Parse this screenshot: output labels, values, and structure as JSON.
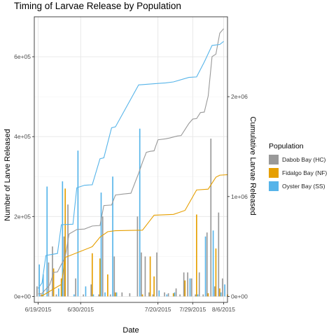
{
  "chart_data": {
    "type": "bar",
    "title": "Timing of Larvae Release by Population",
    "xlabel": "Date",
    "ylabel": "Number of Larve Released",
    "y2label": "Cumulative Larvae Released",
    "x_start": "2015-06-19",
    "x_tick_dates": [
      "2015-06-19",
      "2015-06-30",
      "2015-07-20",
      "2015-07-29",
      "2015-08-06"
    ],
    "x_tick_labels": [
      "6/19/2015",
      "6/30/2015",
      "7/20/2015",
      "7/29/2015",
      "8/6/2015"
    ],
    "xlim": [
      "2015-06-18",
      "2015-08-07"
    ],
    "ylim": [
      -15000,
      700000
    ],
    "y_ticks": [
      0,
      200000,
      400000,
      600000
    ],
    "y_tick_labels": [
      "0e+00",
      "2e+05",
      "4e+05",
      "6e+05"
    ],
    "y2lim": [
      -60000,
      2800000
    ],
    "y2_ticks": [
      0,
      1000000,
      2000000
    ],
    "y2_tick_labels": [
      "0e+00",
      "1e+06",
      "2e+06"
    ],
    "grid": true,
    "legend_position": "right",
    "legend_title": "Population",
    "series": [
      {
        "name": "Dabob Bay (HC)",
        "color": "#999999",
        "dates": [
          "2015-06-19",
          "2015-06-20",
          "2015-06-22",
          "2015-06-23",
          "2015-06-24",
          "2015-06-26",
          "2015-06-27",
          "2015-06-29",
          "2015-07-01",
          "2015-07-03",
          "2015-07-05",
          "2015-07-06",
          "2015-07-08",
          "2015-07-09",
          "2015-07-11",
          "2015-07-13",
          "2015-07-15",
          "2015-07-16",
          "2015-07-17",
          "2015-07-18",
          "2015-07-19",
          "2015-07-20",
          "2015-07-22",
          "2015-07-23",
          "2015-07-25",
          "2015-07-26",
          "2015-07-27",
          "2015-07-28",
          "2015-07-29",
          "2015-07-30",
          "2015-07-31",
          "2015-08-01",
          "2015-08-02",
          "2015-08-03",
          "2015-08-04",
          "2015-08-05",
          "2015-08-06"
        ],
        "values": [
          25000,
          5000,
          85000,
          125000,
          5000,
          150000,
          230000,
          45000,
          5000,
          30000,
          5000,
          200000,
          5000,
          100000,
          10000,
          8000,
          200000,
          110000,
          100000,
          10000,
          5000,
          110000,
          10000,
          8000,
          20000,
          5000,
          60000,
          60000,
          45000,
          5000,
          60000,
          5000,
          160000,
          395000,
          25000,
          210000,
          45000
        ],
        "cumulative": [
          25000,
          30000,
          115000,
          240000,
          245000,
          395000,
          625000,
          670000,
          675000,
          705000,
          710000,
          910000,
          915000,
          1015000,
          1025000,
          1033000,
          1233000,
          1343000,
          1443000,
          1453000,
          1458000,
          1568000,
          1578000,
          1586000,
          1606000,
          1611000,
          1671000,
          1731000,
          1776000,
          1781000,
          1841000,
          1846000,
          2006000,
          2401000,
          2426000,
          2636000,
          2681000
        ]
      },
      {
        "name": "Fidalgo Bay (NF)",
        "color": "#E69F00",
        "dates": [
          "2015-06-20",
          "2015-06-23",
          "2015-06-25",
          "2015-06-26",
          "2015-07-03",
          "2015-07-05",
          "2015-07-07",
          "2015-07-09",
          "2015-07-16",
          "2015-07-18",
          "2015-07-19",
          "2015-07-24",
          "2015-07-27",
          "2015-07-30",
          "2015-08-02",
          "2015-08-04",
          "2015-08-05",
          "2015-08-07"
        ],
        "values": [
          5000,
          70000,
          45000,
          270000,
          108000,
          95000,
          55000,
          10000,
          5000,
          100000,
          50000,
          8000,
          40000,
          205000,
          8000,
          120000,
          20000,
          5000
        ],
        "cumulative": [
          5000,
          75000,
          120000,
          390000,
          498000,
          593000,
          648000,
          658000,
          663000,
          763000,
          813000,
          821000,
          861000,
          1066000,
          1074000,
          1194000,
          1214000,
          1219000
        ]
      },
      {
        "name": "Oyster Bay (SS)",
        "color": "#56B4E9",
        "dates": [
          "2015-06-19",
          "2015-06-20",
          "2015-06-21",
          "2015-06-24",
          "2015-06-25",
          "2015-06-28",
          "2015-06-29",
          "2015-07-01",
          "2015-07-03",
          "2015-07-05",
          "2015-07-06",
          "2015-07-08",
          "2015-07-09",
          "2015-07-15",
          "2015-07-20",
          "2015-07-22",
          "2015-07-24",
          "2015-07-28",
          "2015-07-30",
          "2015-08-01",
          "2015-08-03",
          "2015-08-05",
          "2015-08-06"
        ],
        "values": [
          80000,
          55000,
          275000,
          20000,
          288000,
          5000,
          365000,
          25000,
          5000,
          260000,
          10000,
          300000,
          10000,
          420000,
          15000,
          5000,
          10000,
          45000,
          5000,
          150000,
          165000,
          10000,
          30000
        ],
        "cumulative": [
          80000,
          135000,
          410000,
          430000,
          718000,
          723000,
          1088000,
          1113000,
          1118000,
          1378000,
          1388000,
          1688000,
          1698000,
          2118000,
          2133000,
          2138000,
          2148000,
          2193000,
          2198000,
          2348000,
          2513000,
          2523000,
          2553000
        ]
      }
    ]
  }
}
